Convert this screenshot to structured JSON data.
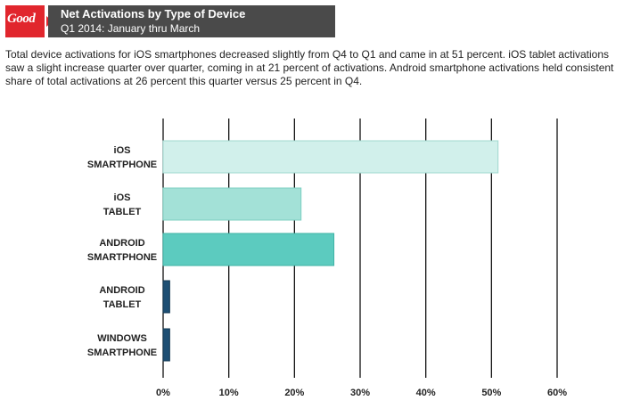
{
  "header": {
    "logo_text": "Good",
    "title": "Net Activations by Type of Device",
    "subtitle": "Q1 2014: January thru March"
  },
  "description": "Total device activations for iOS smartphones decreased slightly from Q4 to Q1 and came in at 51 percent. iOS tablet activations saw a slight increase quarter over quarter, coming in at 21 percent of activations. Android smartphone activations held consistent share of total activations at 26 percent this quarter versus 25 percent in Q4.",
  "chart_data": {
    "type": "bar",
    "orientation": "horizontal",
    "title": "Net Activations by Type of Device",
    "subtitle": "Q1 2014: January thru March",
    "categories": [
      [
        "iOS",
        "SMARTPHONE"
      ],
      [
        "iOS",
        "TABLET"
      ],
      [
        "ANDROID",
        "SMARTPHONE"
      ],
      [
        "ANDROID",
        "TABLET"
      ],
      [
        "WINDOWS",
        "SMARTPHONE"
      ]
    ],
    "values": [
      51,
      21,
      26,
      1,
      1
    ],
    "value_unit": "%",
    "xlim": [
      0,
      60
    ],
    "xticks": [
      0,
      10,
      20,
      30,
      40,
      50,
      60
    ],
    "tick_labels": [
      "0%",
      "10%",
      "20%",
      "30%",
      "40%",
      "50%",
      "60%"
    ],
    "grid": "vertical",
    "bar_colors": [
      "#d1f0eb",
      "#a3e1d7",
      "#5ccbbf",
      "#1d4f74",
      "#1d4f74"
    ],
    "bar_borders": [
      "#9fd8cf",
      "#7ccfc2",
      "#3fb3a6",
      "#123752",
      "#123752"
    ]
  }
}
